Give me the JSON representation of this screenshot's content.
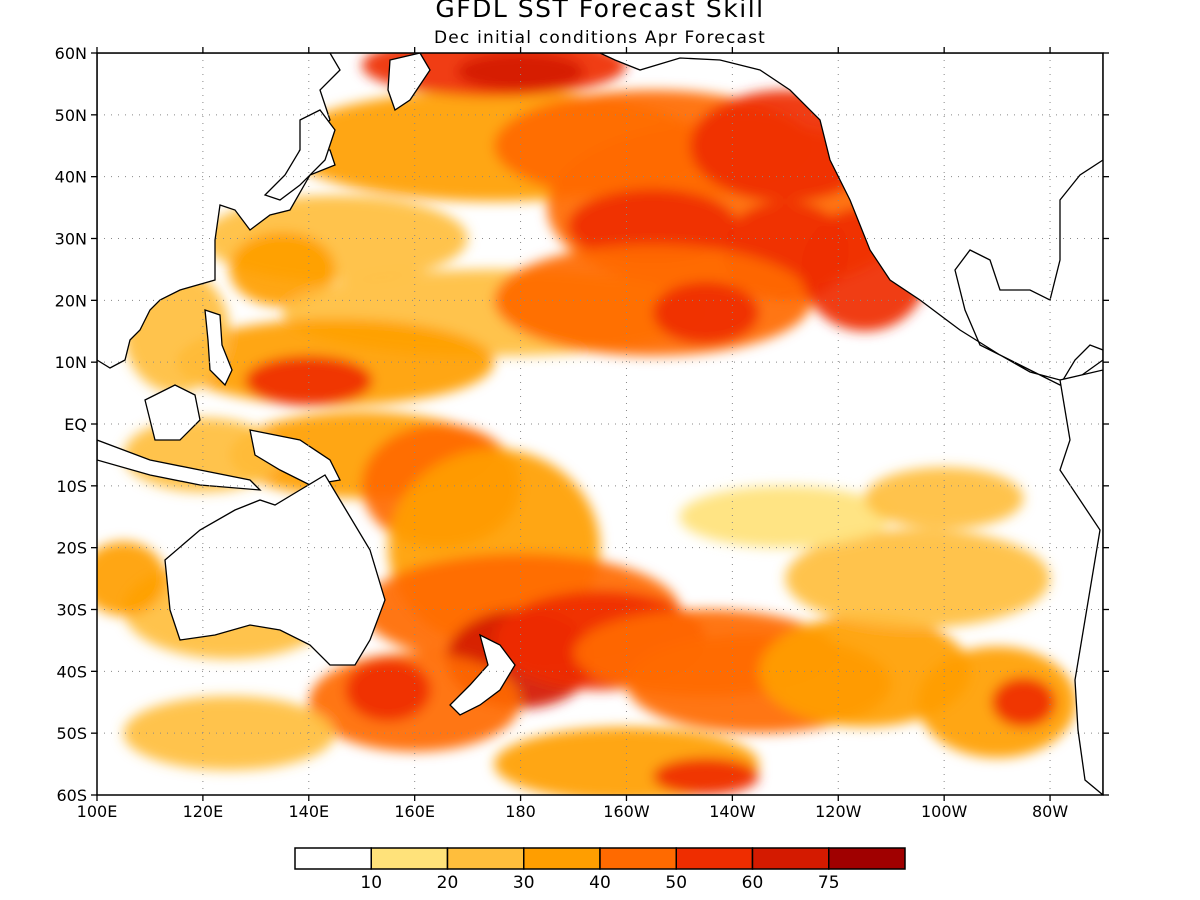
{
  "title": "GFDL SST Forecast Skill",
  "subtitle": "Dec initial conditions  Apr Forecast",
  "chart_data": {
    "type": "heatmap",
    "region": "Pacific Ocean",
    "lon_range": [
      100,
      290
    ],
    "lat_range": [
      -60,
      60
    ],
    "x_ticks": [
      "100E",
      "120E",
      "140E",
      "160E",
      "180",
      "160W",
      "140W",
      "120W",
      "100W",
      "80W"
    ],
    "y_ticks": [
      "60N",
      "50N",
      "40N",
      "30N",
      "20N",
      "10N",
      "EQ",
      "10S",
      "20S",
      "30S",
      "40S",
      "50S",
      "60S"
    ],
    "grid": "dotted",
    "colorbar": {
      "levels": [
        "10",
        "20",
        "30",
        "40",
        "50",
        "60",
        "75"
      ],
      "colors": [
        "#ffffff",
        "#ffe27a",
        "#ffbe3c",
        "#ff9e00",
        "#ff6a00",
        "#ef2d00",
        "#d41a00",
        "#a00000"
      ]
    }
  }
}
